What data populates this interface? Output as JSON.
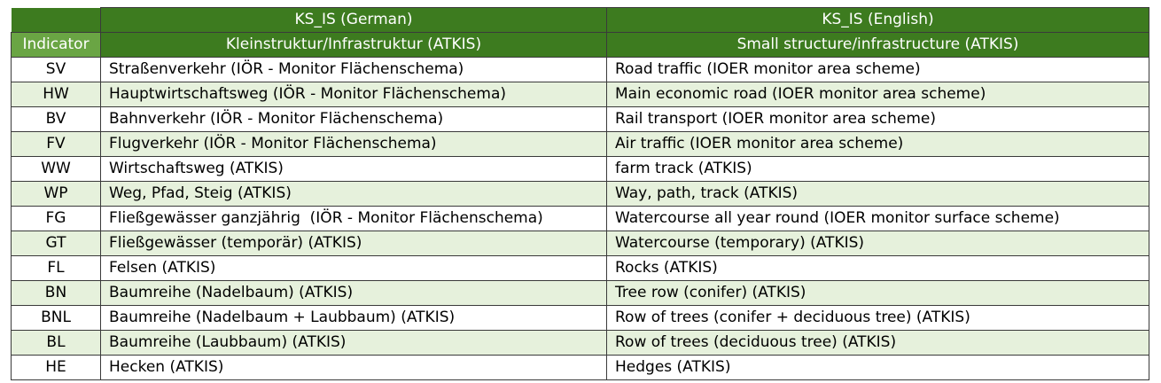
{
  "table": {
    "group_headers": [
      "KS_IS (German)",
      "KS_IS (English)"
    ],
    "column_headers": [
      "Indicator",
      "Kleinstruktur/Infrastruktur (ATKIS)",
      "Small structure/infrastructure (ATKIS)"
    ],
    "rows": [
      {
        "indicator": "SV",
        "german": "Straßenverkehr (IÖR - Monitor Flächenschema)",
        "english": "Road traffic (IOER monitor area scheme)"
      },
      {
        "indicator": "HW",
        "german": "Hauptwirtschaftsweg (IÖR - Monitor Flächenschema)",
        "english": "Main economic road (IOER monitor area scheme)"
      },
      {
        "indicator": "BV",
        "german": "Bahnverkehr (IÖR - Monitor Flächenschema)",
        "english": "Rail transport (IOER monitor area scheme)"
      },
      {
        "indicator": "FV",
        "german": "Flugverkehr (IÖR - Monitor Flächenschema)",
        "english": "Air traffic (IOER monitor area scheme)"
      },
      {
        "indicator": "WW",
        "german": "Wirtschaftsweg (ATKIS)",
        "english": "farm track (ATKIS)"
      },
      {
        "indicator": "WP",
        "german": "Weg, Pfad, Steig (ATKIS)",
        "english": "Way, path, track (ATKIS)"
      },
      {
        "indicator": "FG",
        "german": "Fließgewässer ganzjährig  (IÖR - Monitor Flächenschema)",
        "english": "Watercourse all year round (IOER monitor surface scheme)"
      },
      {
        "indicator": "GT",
        "german": "Fließgewässer (temporär) (ATKIS)",
        "english": "Watercourse (temporary) (ATKIS)"
      },
      {
        "indicator": "FL",
        "german": "Felsen (ATKIS)",
        "english": "Rocks (ATKIS)"
      },
      {
        "indicator": "BN",
        "german": "Baumreihe (Nadelbaum) (ATKIS)",
        "english": "Tree row (conifer) (ATKIS)"
      },
      {
        "indicator": "BNL",
        "german": "Baumreihe (Nadelbaum + Laubbaum) (ATKIS)",
        "english": "Row of trees (conifer + deciduous tree) (ATKIS)"
      },
      {
        "indicator": "BL",
        "german": "Baumreihe (Laubbaum) (ATKIS)",
        "english": "Row of trees (deciduous tree) (ATKIS)"
      },
      {
        "indicator": "HE",
        "german": "Hecken (ATKIS)",
        "english": "Hedges (ATKIS)"
      }
    ]
  },
  "colors": {
    "header_dark_green": "#3d7b1f",
    "header_light_green": "#6aa544",
    "row_alt_green": "#e6f1dc",
    "row_white": "#ffffff"
  }
}
